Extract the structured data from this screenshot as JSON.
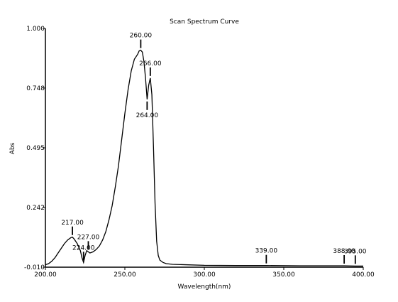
{
  "chart_data": {
    "type": "line",
    "title": "Scan Spectrum Curve",
    "xlabel": "Wavelength(nm)",
    "ylabel": "Abs",
    "xlim": [
      200,
      400
    ],
    "ylim": [
      -0.01,
      1.0
    ],
    "xticks": [
      "200.00",
      "250.00",
      "300.00",
      "350.00",
      "400.00"
    ],
    "xtick_values": [
      200,
      250,
      300,
      350,
      400
    ],
    "yticks": [
      "-0.010",
      "0.242",
      "0.495",
      "0.748",
      "1.000"
    ],
    "ytick_values": [
      -0.01,
      0.242,
      0.495,
      0.748,
      1.0
    ],
    "grid": false,
    "line_color": "#000000",
    "series": [
      {
        "x": [
          200,
          202,
          204,
          206,
          208,
          210,
          212,
          214,
          216,
          217,
          218,
          220,
          222,
          223,
          224,
          225,
          226,
          227,
          228,
          230,
          232,
          234,
          236,
          238,
          240,
          242,
          244,
          246,
          248,
          250,
          252,
          254,
          256,
          258,
          259,
          260,
          261,
          262,
          263,
          264,
          265,
          266,
          267,
          268,
          269,
          270,
          271,
          272,
          274,
          276,
          280,
          290,
          300,
          320,
          339,
          360,
          380,
          388,
          395,
          400
        ],
        "y": [
          0.0,
          0.005,
          0.015,
          0.03,
          0.05,
          0.07,
          0.09,
          0.105,
          0.115,
          0.117,
          0.11,
          0.09,
          0.06,
          0.03,
          0.01,
          0.04,
          0.06,
          0.055,
          0.05,
          0.055,
          0.065,
          0.08,
          0.105,
          0.14,
          0.19,
          0.25,
          0.33,
          0.42,
          0.53,
          0.64,
          0.74,
          0.82,
          0.87,
          0.89,
          0.905,
          0.908,
          0.9,
          0.86,
          0.79,
          0.7,
          0.76,
          0.79,
          0.72,
          0.5,
          0.26,
          0.1,
          0.04,
          0.02,
          0.01,
          0.005,
          0.002,
          0.0,
          -0.002,
          -0.003,
          -0.003,
          -0.004,
          -0.004,
          -0.004,
          -0.005,
          -0.005
        ]
      }
    ],
    "peaks": [
      {
        "wavelength": 217,
        "label": "217.00",
        "abs": 0.117,
        "dir": "up"
      },
      {
        "wavelength": 224,
        "label": "224.00",
        "abs": 0.01,
        "dir": "up"
      },
      {
        "wavelength": 227,
        "label": "227.00",
        "abs": 0.055,
        "dir": "up"
      },
      {
        "wavelength": 260,
        "label": "260.00",
        "abs": 0.908,
        "dir": "up"
      },
      {
        "wavelength": 264,
        "label": "264.00",
        "abs": 0.7,
        "dir": "down"
      },
      {
        "wavelength": 266,
        "label": "266.00",
        "abs": 0.79,
        "dir": "up"
      },
      {
        "wavelength": 339,
        "label": "339.00",
        "abs": -0.003,
        "dir": "up"
      },
      {
        "wavelength": 388,
        "label": "388.00",
        "abs": -0.004,
        "dir": "up"
      },
      {
        "wavelength": 395,
        "label": "395.00",
        "abs": -0.005,
        "dir": "up"
      }
    ]
  }
}
